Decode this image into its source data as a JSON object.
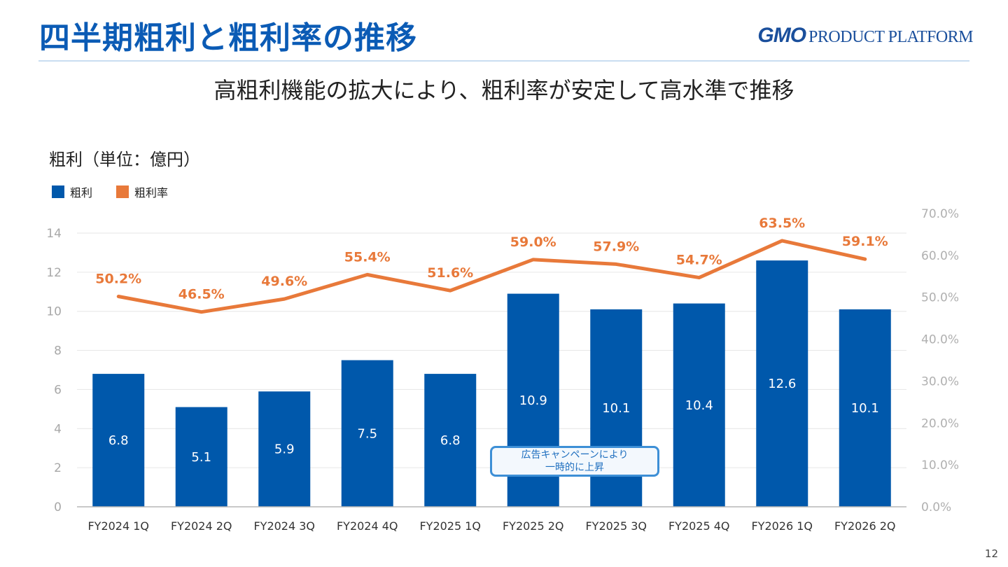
{
  "title": "四半期粗利と粗利率の推移",
  "logo": {
    "gmo": "GMO",
    "text": "PRODUCT PLATFORM"
  },
  "subtitle": "高粗利機能の拡大により、粗利率が安定して高水準で推移",
  "unit_label": "粗利（単位：億円）",
  "page_number": "12",
  "callout": {
    "line1": "広告キャンペーンにより",
    "line2": "一時的に上昇"
  },
  "colors": {
    "bar": "#0058ab",
    "line": "#e8793a",
    "grid": "#e6e6e6",
    "axis": "#b7b7b7",
    "title": "#0b5bb5"
  },
  "chart_data": {
    "type": "bar",
    "categories": [
      "FY2024 1Q",
      "FY2024 2Q",
      "FY2024 3Q",
      "FY2024 4Q",
      "FY2025 1Q",
      "FY2025 2Q",
      "FY2025 3Q",
      "FY2025 4Q",
      "FY2026 1Q",
      "FY2026 2Q"
    ],
    "series": [
      {
        "name": "粗利",
        "type": "bar",
        "axis": "left",
        "values": [
          6.8,
          5.1,
          5.9,
          7.5,
          6.8,
          10.9,
          10.1,
          10.4,
          12.6,
          10.1
        ],
        "labels": [
          "6.8",
          "5.1",
          "5.9",
          "7.5",
          "6.8",
          "10.9",
          "10.1",
          "10.4",
          "12.6",
          "10.1"
        ]
      },
      {
        "name": "粗利率",
        "type": "line",
        "axis": "right",
        "values": [
          50.2,
          46.5,
          49.6,
          55.4,
          51.6,
          59.0,
          57.9,
          54.7,
          63.5,
          59.1
        ],
        "labels": [
          "50.2%",
          "46.5%",
          "49.6%",
          "55.4%",
          "51.6%",
          "59.0%",
          "57.9%",
          "54.7%",
          "63.5%",
          "59.1%"
        ]
      }
    ],
    "ylim": [
      0,
      14
    ],
    "yticks": [
      0,
      2,
      4,
      6,
      8,
      10,
      12,
      14
    ],
    "y2lim": [
      0,
      70
    ],
    "y2ticks": [
      "0.0%",
      "10.0%",
      "20.0%",
      "30.0%",
      "40.0%",
      "50.0%",
      "60.0%",
      "70.0%"
    ],
    "legend": "top-left",
    "grid": true
  }
}
